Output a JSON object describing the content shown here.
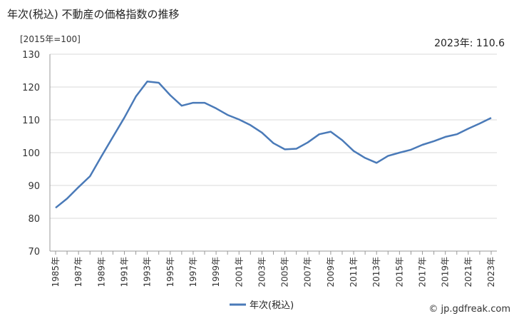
{
  "title": "年次(税込) 不動産の価格指数の推移",
  "unit_label": "[2015年=100]",
  "latest_label": "2023年: 110.6",
  "credit": "© jp.gdfreak.com",
  "colors": {
    "line": "#4a7ab8",
    "grid": "#d9d9d9",
    "axis": "#999999"
  },
  "chart_data": {
    "type": "line",
    "title": "年次(税込) 不動産の価格指数の推移",
    "ylabel": "[2015年=100]",
    "xlabel": "",
    "ylim": [
      70,
      130
    ],
    "yticks": [
      70,
      80,
      90,
      100,
      110,
      120,
      130
    ],
    "grid": true,
    "legend_position": "bottom",
    "x": [
      "1985年",
      "1986年",
      "1987年",
      "1988年",
      "1989年",
      "1990年",
      "1991年",
      "1992年",
      "1993年",
      "1994年",
      "1995年",
      "1996年",
      "1997年",
      "1998年",
      "1999年",
      "2000年",
      "2001年",
      "2002年",
      "2003年",
      "2004年",
      "2005年",
      "2006年",
      "2007年",
      "2008年",
      "2009年",
      "2010年",
      "2011年",
      "2012年",
      "2013年",
      "2014年",
      "2015年",
      "2016年",
      "2017年",
      "2018年",
      "2019年",
      "2020年",
      "2021年",
      "2022年",
      "2023年"
    ],
    "xtick_labels": [
      "1985年",
      "1987年",
      "1989年",
      "1991年",
      "1993年",
      "1995年",
      "1997年",
      "1999年",
      "2001年",
      "2003年",
      "2005年",
      "2007年",
      "2009年",
      "2011年",
      "2013年",
      "2015年",
      "2017年",
      "2019年",
      "2021年",
      "2023年"
    ],
    "series": [
      {
        "name": "年次(税込)",
        "values": [
          83.2,
          86.0,
          89.5,
          92.8,
          98.9,
          104.8,
          110.7,
          117.1,
          121.7,
          121.3,
          117.5,
          114.3,
          115.2,
          115.2,
          113.5,
          111.5,
          110.1,
          108.4,
          106.1,
          102.9,
          101.0,
          101.2,
          103.1,
          105.6,
          106.4,
          103.8,
          100.5,
          98.4,
          96.9,
          99.0,
          100.0,
          100.9,
          102.4,
          103.5,
          104.8,
          105.6,
          107.3,
          108.9,
          110.6
        ]
      }
    ]
  }
}
